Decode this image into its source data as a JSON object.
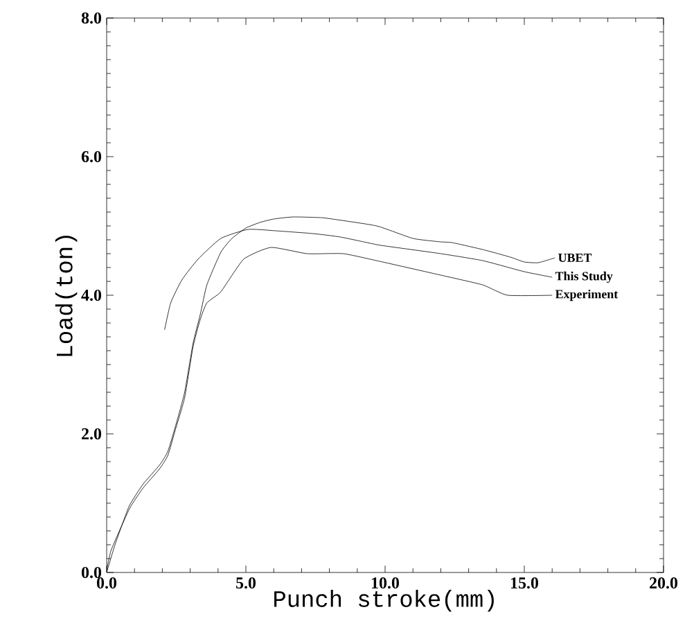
{
  "chart_data": {
    "type": "line",
    "xlabel": "Punch stroke(mm)",
    "ylabel": "Load(ton)",
    "xlim": [
      0,
      20
    ],
    "ylim": [
      0,
      8
    ],
    "xticks": [
      {
        "value": 0,
        "label": "0.0"
      },
      {
        "value": 5,
        "label": "5.0"
      },
      {
        "value": 10,
        "label": "10.0"
      },
      {
        "value": 15,
        "label": "15.0"
      },
      {
        "value": 20,
        "label": "20.0"
      }
    ],
    "yticks": [
      {
        "value": 0,
        "label": "0.0"
      },
      {
        "value": 2,
        "label": "2.0"
      },
      {
        "value": 4,
        "label": "4.0"
      },
      {
        "value": 6,
        "label": "6.0"
      },
      {
        "value": 8,
        "label": "8.0"
      }
    ],
    "grid": false,
    "legend": false,
    "marker": "none",
    "line_style": "solid",
    "series": [
      {
        "name": "UBET",
        "color": "#000000",
        "x": [
          0,
          0.3,
          0.8,
          1.3,
          1.9,
          2.2,
          2.5,
          2.8,
          3.1,
          3.36,
          3.6,
          4.1,
          4.5,
          5.0,
          5.5,
          6.0,
          6.7,
          7.7,
          8.1,
          9.7,
          11.0,
          12.0,
          12.4,
          13.5,
          14.5,
          15.0,
          15.5,
          16.1
        ],
        "values": [
          0,
          0.4,
          0.95,
          1.27,
          1.55,
          1.75,
          2.15,
          2.6,
          3.3,
          3.72,
          4.15,
          4.62,
          4.82,
          4.97,
          5.05,
          5.1,
          5.13,
          5.12,
          5.1,
          5.0,
          4.82,
          4.77,
          4.76,
          4.66,
          4.55,
          4.48,
          4.47,
          4.54
        ]
      },
      {
        "name": "This Study",
        "color": "#000000",
        "x": [
          2.08,
          2.3,
          2.7,
          3.28,
          4.1,
          5.08,
          6.07,
          7.4,
          8.4,
          9.7,
          10.2,
          12.0,
          13.5,
          15.0,
          16.0
        ],
        "values": [
          3.5,
          3.89,
          4.22,
          4.52,
          4.82,
          4.95,
          4.93,
          4.89,
          4.84,
          4.73,
          4.7,
          4.6,
          4.5,
          4.34,
          4.26
        ]
      },
      {
        "name": "Experiment",
        "color": "#000000",
        "x": [
          0,
          0.16,
          0.82,
          1.31,
          1.89,
          2.2,
          2.46,
          2.8,
          3.1,
          3.36,
          3.6,
          4.1,
          4.92,
          5.9,
          7.2,
          8.5,
          9.8,
          12.0,
          13.5,
          14.4,
          16.0
        ],
        "values": [
          0.02,
          0.32,
          0.92,
          1.22,
          1.49,
          1.69,
          2.05,
          2.52,
          3.25,
          3.65,
          3.89,
          4.05,
          4.52,
          4.69,
          4.6,
          4.6,
          4.49,
          4.29,
          4.15,
          4.0,
          4.0
        ]
      }
    ]
  }
}
